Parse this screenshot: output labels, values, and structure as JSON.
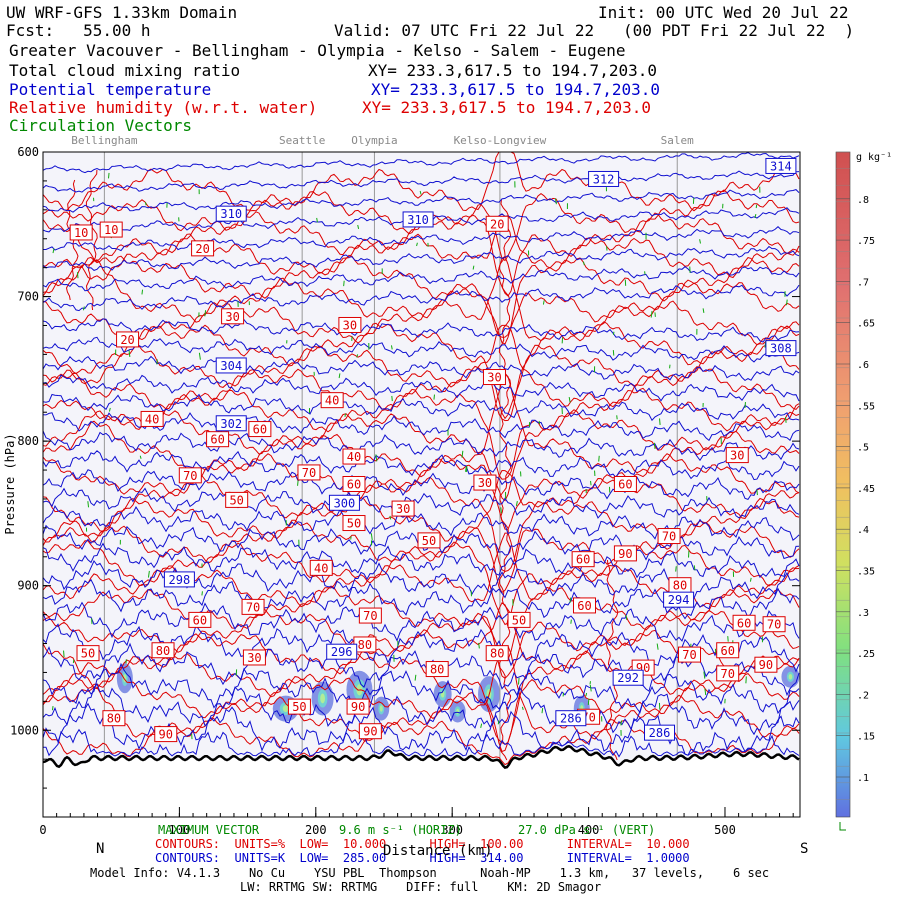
{
  "header": {
    "model": "UW WRF-GFS 1.33km Domain",
    "init": "Init: 00 UTC Wed 20 Jul 22",
    "fcst": "Fcst:   55.00 h",
    "valid": "Valid: 07 UTC Fri 22 Jul 22   (00 PDT Fri 22 Jul 22  )",
    "region": "Greater Vacouver - Bellingham - Olympia - Kelso - Salem - Eugene",
    "f1_name": "Total cloud mixing ratio",
    "f1_xy": "XY= 233.3,617.5 to 194.7,203.0",
    "f2_name": "Potential temperature",
    "f2_xy": "XY= 233.3,617.5 to 194.7,203.0",
    "f3_name": "Relative humidity (w.r.t. water)",
    "f3_xy": "XY= 233.3,617.5 to 194.7,203.0",
    "f4_name": "Circulation Vectors"
  },
  "footer": {
    "vec_label": "MAXIMUM VECTOR",
    "vec_horiz": "9.6 m s⁻¹ (HORIZ)",
    "vec_vert": "27.0 dPa s⁻¹ (VERT)",
    "red_line": "CONTOURS:  UNITS=%  LOW=  10.000      HIGH=  100.00      INTERVAL=  10.000",
    "blue_line": "CONTOURS:  UNITS=K  LOW=  285.00      HIGH=  314.00      INTERVAL=  1.0000",
    "model_info": "Model Info: V4.1.3    No Cu    YSU PBL  Thompson      Noah-MP    1.3 km,   37 levels,    6 sec",
    "model_info2": "LW: RRTMG SW: RRTMG    DIFF: full    KM: 2D Smagor",
    "xlabel": "Distance (km)",
    "left_end": "N",
    "right_end": "S"
  },
  "colorbar": {
    "unit": "g kg⁻¹",
    "ticks": [
      ".1",
      ".15",
      ".2",
      ".25",
      ".3",
      ".35",
      ".4",
      ".45",
      ".5",
      ".55",
      ".6",
      ".65",
      ".7",
      ".75",
      ".8"
    ]
  },
  "chart_data": {
    "type": "cross-section contour",
    "xlabel": "Distance (km)",
    "ylabel": "Pressure (hPa)",
    "xlim": [
      0,
      555
    ],
    "ylim": [
      1060,
      600
    ],
    "x_ticks": [
      0,
      100,
      200,
      300,
      400,
      500
    ],
    "y_ticks": [
      600,
      700,
      800,
      900,
      1000
    ],
    "y_tick_labels": [
      "600",
      "700",
      "800",
      "900",
      "1000"
    ],
    "locations": [
      {
        "name": "Bellingham",
        "x": 45
      },
      {
        "name": "Seattle",
        "x": 190
      },
      {
        "name": "Olympia",
        "x": 243
      },
      {
        "name": "Kelso-Longview",
        "x": 335
      },
      {
        "name": "Salem",
        "x": 465
      }
    ],
    "theta_labels": [
      {
        "v": "314",
        "x": 541,
        "p": 610
      },
      {
        "v": "312",
        "x": 411,
        "p": 619
      },
      {
        "v": "310",
        "x": 138,
        "p": 643
      },
      {
        "v": "310",
        "x": 275,
        "p": 647
      },
      {
        "v": "308",
        "x": 541,
        "p": 736
      },
      {
        "v": "304",
        "x": 138,
        "p": 748
      },
      {
        "v": "302",
        "x": 138,
        "p": 788
      },
      {
        "v": "300",
        "x": 221,
        "p": 843
      },
      {
        "v": "298",
        "x": 100,
        "p": 896
      },
      {
        "v": "296",
        "x": 219,
        "p": 946
      },
      {
        "v": "294",
        "x": 466,
        "p": 910
      },
      {
        "v": "292",
        "x": 429,
        "p": 964
      },
      {
        "v": "286",
        "x": 387,
        "p": 992
      },
      {
        "v": "286",
        "x": 452,
        "p": 1002
      }
    ],
    "rh_labels": [
      {
        "v": "10",
        "x": 28,
        "p": 656
      },
      {
        "v": "10",
        "x": 50,
        "p": 654
      },
      {
        "v": "20",
        "x": 117,
        "p": 667
      },
      {
        "v": "20",
        "x": 333,
        "p": 650
      },
      {
        "v": "30",
        "x": 139,
        "p": 714
      },
      {
        "v": "30",
        "x": 225,
        "p": 720
      },
      {
        "v": "20",
        "x": 62,
        "p": 730
      },
      {
        "v": "30",
        "x": 331,
        "p": 756
      },
      {
        "v": "40",
        "x": 212,
        "p": 772
      },
      {
        "v": "40",
        "x": 80,
        "p": 785
      },
      {
        "v": "60",
        "x": 128,
        "p": 799
      },
      {
        "v": "60",
        "x": 159,
        "p": 792
      },
      {
        "v": "40",
        "x": 228,
        "p": 811
      },
      {
        "v": "30",
        "x": 509,
        "p": 810
      },
      {
        "v": "70",
        "x": 108,
        "p": 824
      },
      {
        "v": "70",
        "x": 195,
        "p": 822
      },
      {
        "v": "60",
        "x": 228,
        "p": 830
      },
      {
        "v": "30",
        "x": 324,
        "p": 829
      },
      {
        "v": "60",
        "x": 427,
        "p": 830
      },
      {
        "v": "50",
        "x": 142,
        "p": 841
      },
      {
        "v": "30",
        "x": 264,
        "p": 847
      },
      {
        "v": "50",
        "x": 228,
        "p": 857
      },
      {
        "v": "70",
        "x": 459,
        "p": 866
      },
      {
        "v": "50",
        "x": 283,
        "p": 869
      },
      {
        "v": "60",
        "x": 396,
        "p": 882
      },
      {
        "v": "90",
        "x": 427,
        "p": 878
      },
      {
        "v": "40",
        "x": 204,
        "p": 888
      },
      {
        "v": "80",
        "x": 467,
        "p": 900
      },
      {
        "v": "70",
        "x": 154,
        "p": 915
      },
      {
        "v": "60",
        "x": 397,
        "p": 914
      },
      {
        "v": "60",
        "x": 115,
        "p": 924
      },
      {
        "v": "50",
        "x": 349,
        "p": 924
      },
      {
        "v": "60",
        "x": 514,
        "p": 926
      },
      {
        "v": "70",
        "x": 536,
        "p": 927
      },
      {
        "v": "70",
        "x": 240,
        "p": 921
      },
      {
        "v": "80",
        "x": 236,
        "p": 941
      },
      {
        "v": "50",
        "x": 33,
        "p": 947
      },
      {
        "v": "80",
        "x": 88,
        "p": 945
      },
      {
        "v": "80",
        "x": 333,
        "p": 947
      },
      {
        "v": "70",
        "x": 474,
        "p": 948
      },
      {
        "v": "60",
        "x": 502,
        "p": 945
      },
      {
        "v": "90",
        "x": 530,
        "p": 955
      },
      {
        "v": "30",
        "x": 155,
        "p": 950
      },
      {
        "v": "80",
        "x": 289,
        "p": 958
      },
      {
        "v": "90",
        "x": 440,
        "p": 957
      },
      {
        "v": "70",
        "x": 502,
        "p": 961
      },
      {
        "v": "50",
        "x": 188,
        "p": 984
      },
      {
        "v": "90",
        "x": 231,
        "p": 984
      },
      {
        "v": "80",
        "x": 52,
        "p": 992
      },
      {
        "v": "70",
        "x": 400,
        "p": 991
      },
      {
        "v": "90",
        "x": 90,
        "p": 1003
      },
      {
        "v": "90",
        "x": 240,
        "p": 1001
      }
    ],
    "cloud_patches": [
      {
        "x": 60,
        "p": 964,
        "rx": 5,
        "ry": 12
      },
      {
        "x": 178,
        "p": 985,
        "rx": 10,
        "ry": 10
      },
      {
        "x": 205,
        "p": 978,
        "rx": 8,
        "ry": 14
      },
      {
        "x": 232,
        "p": 972,
        "rx": 10,
        "ry": 16
      },
      {
        "x": 248,
        "p": 985,
        "rx": 5,
        "ry": 9
      },
      {
        "x": 293,
        "p": 975,
        "rx": 6,
        "ry": 10
      },
      {
        "x": 304,
        "p": 987,
        "rx": 5,
        "ry": 8
      },
      {
        "x": 327,
        "p": 975,
        "rx": 8,
        "ry": 15
      },
      {
        "x": 395,
        "p": 985,
        "rx": 5,
        "ry": 10
      },
      {
        "x": 548,
        "p": 963,
        "rx": 6,
        "ry": 8
      }
    ]
  }
}
